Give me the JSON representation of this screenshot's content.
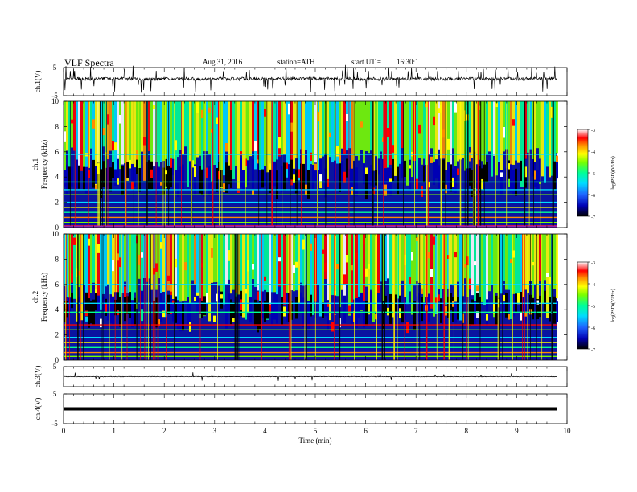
{
  "header": {
    "title": "VLF Spectra",
    "date": "Aug.31, 2016",
    "station": "station=ATH",
    "start_label": "start UT =",
    "start_time": "16:30:1"
  },
  "colors": {
    "colormap": [
      "#000000",
      "#0000b4",
      "#1e64ff",
      "#00dcff",
      "#00ff96",
      "#78ff00",
      "#ffff00",
      "#ff8c00",
      "#ff0000",
      "#ffffff"
    ],
    "trace": "#000000"
  },
  "chart_data": [
    {
      "type": "line",
      "ylabel": "ch.1(V)",
      "ylim": [
        -5,
        5
      ],
      "yticks": [
        "5",
        "-5"
      ],
      "xlim": [
        0,
        10
      ],
      "description_level": "noisy waveform near +1 V with frequent spikes",
      "series": [
        {
          "values_summary": {
            "baseline": 1.0,
            "spread": 1.2
          }
        }
      ]
    },
    {
      "type": "heatmap",
      "ylabel": [
        "ch.1",
        "Frequency (kHz)"
      ],
      "yticks": [
        "0",
        "2",
        "4",
        "6",
        "8",
        "10"
      ],
      "ylim": [
        0,
        10
      ],
      "xlim": [
        0,
        10
      ],
      "colorbar": {
        "label": "log(PSD)(V²/Hz)",
        "ticks": [
          "-3",
          "-4",
          "-5",
          "-6",
          "-7"
        ],
        "range": [
          -7,
          -3
        ]
      }
    },
    {
      "type": "heatmap",
      "ylabel": [
        "ch.2",
        "Frequency (kHz)"
      ],
      "yticks": [
        "0",
        "2",
        "4",
        "6",
        "8",
        "10"
      ],
      "ylim": [
        0,
        10
      ],
      "xlim": [
        0,
        10
      ],
      "colorbar": {
        "label": "log(PSD)(V²/Hz)",
        "ticks": [
          "-3",
          "-4",
          "-5",
          "-6",
          "-7"
        ],
        "range": [
          -7,
          -3
        ]
      }
    },
    {
      "type": "line",
      "ylabel": "ch.3(V)",
      "ylim": [
        -5,
        5
      ],
      "yticks": [
        "5"
      ],
      "xlim": [
        0,
        10
      ],
      "series": [
        {
          "values_summary": {
            "baseline": 0.0,
            "spread": 0.3
          }
        }
      ]
    },
    {
      "type": "line",
      "ylabel": "ch.4(V)",
      "ylim": [
        -5,
        5
      ],
      "yticks": [
        "5",
        "-5"
      ],
      "xlim": [
        0,
        10
      ],
      "series": [
        {
          "values_summary": {
            "baseline": 0.0,
            "spread": 0.0
          }
        }
      ]
    }
  ],
  "xaxis": {
    "label": "Time (min)",
    "ticks": [
      "0",
      "1",
      "2",
      "3",
      "4",
      "5",
      "6",
      "7",
      "8",
      "9",
      "10"
    ],
    "data_end": 9.8
  }
}
